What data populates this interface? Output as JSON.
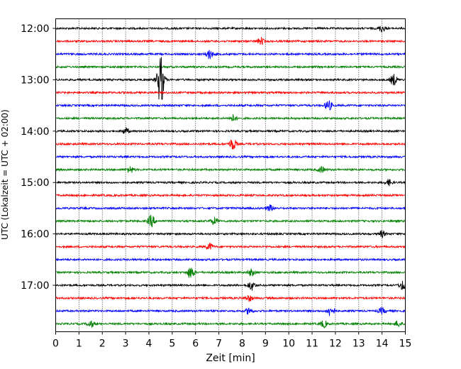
{
  "chart_data": {
    "type": "line",
    "title": "",
    "xlabel": "Zeit  [min]",
    "ylabel": "UTC (Lokalzeit = UTC + 02:00)",
    "xlim": [
      0,
      15
    ],
    "x_ticks": [
      "0",
      "1",
      "2",
      "3",
      "4",
      "5",
      "6",
      "7",
      "8",
      "9",
      "10",
      "11",
      "12",
      "13",
      "14",
      "15"
    ],
    "y_ticks": [
      "12:00",
      "13:00",
      "14:00",
      "15:00",
      "16:00",
      "17:00"
    ],
    "grid": "vertical dotted lines at each minute",
    "trace_interval_minutes": 15,
    "color_cycle": [
      "#000000",
      "#ff0000",
      "#0000ff",
      "#008000"
    ],
    "traces": [
      {
        "start": "12:00",
        "color": "#000000",
        "events": [
          [
            14.0,
            0.8
          ]
        ]
      },
      {
        "start": "12:15",
        "color": "#ff0000",
        "events": [
          [
            8.8,
            0.8
          ]
        ]
      },
      {
        "start": "12:30",
        "color": "#0000ff",
        "events": [
          [
            6.6,
            1.1
          ]
        ]
      },
      {
        "start": "12:45",
        "color": "#008000",
        "events": []
      },
      {
        "start": "13:00",
        "color": "#000000",
        "events": [
          [
            4.5,
            6.0
          ],
          [
            14.5,
            1.3
          ]
        ]
      },
      {
        "start": "13:15",
        "color": "#ff0000",
        "events": []
      },
      {
        "start": "13:30",
        "color": "#0000ff",
        "events": [
          [
            11.7,
            1.2
          ]
        ]
      },
      {
        "start": "13:45",
        "color": "#008000",
        "events": [
          [
            7.6,
            0.8
          ]
        ]
      },
      {
        "start": "14:00",
        "color": "#000000",
        "events": [
          [
            3.0,
            0.7
          ]
        ]
      },
      {
        "start": "14:15",
        "color": "#ff0000",
        "events": [
          [
            7.6,
            1.4
          ]
        ]
      },
      {
        "start": "14:30",
        "color": "#0000ff",
        "events": []
      },
      {
        "start": "14:45",
        "color": "#008000",
        "events": [
          [
            3.2,
            0.8
          ],
          [
            11.4,
            0.7
          ]
        ]
      },
      {
        "start": "15:00",
        "color": "#000000",
        "events": [
          [
            14.3,
            0.7
          ]
        ]
      },
      {
        "start": "15:15",
        "color": "#ff0000",
        "events": []
      },
      {
        "start": "15:30",
        "color": "#0000ff",
        "events": [
          [
            9.2,
            0.7
          ]
        ]
      },
      {
        "start": "15:45",
        "color": "#008000",
        "events": [
          [
            4.1,
            1.4
          ],
          [
            6.8,
            0.8
          ]
        ]
      },
      {
        "start": "16:00",
        "color": "#000000",
        "events": [
          [
            14.0,
            0.7
          ]
        ]
      },
      {
        "start": "16:15",
        "color": "#ff0000",
        "events": [
          [
            6.6,
            0.8
          ]
        ]
      },
      {
        "start": "16:30",
        "color": "#0000ff",
        "events": []
      },
      {
        "start": "16:45",
        "color": "#008000",
        "events": [
          [
            5.8,
            1.4
          ],
          [
            8.4,
            0.8
          ]
        ]
      },
      {
        "start": "17:00",
        "color": "#000000",
        "events": [
          [
            8.4,
            1.1
          ],
          [
            14.9,
            1.1
          ]
        ]
      },
      {
        "start": "17:15",
        "color": "#ff0000",
        "events": [
          [
            8.3,
            0.7
          ]
        ]
      },
      {
        "start": "17:30",
        "color": "#0000ff",
        "events": [
          [
            8.3,
            0.8
          ],
          [
            11.8,
            1.3
          ],
          [
            14.0,
            0.7
          ]
        ]
      },
      {
        "start": "17:45",
        "color": "#008000",
        "events": [
          [
            1.5,
            0.8
          ],
          [
            11.5,
            0.8
          ],
          [
            14.7,
            0.7
          ]
        ]
      }
    ]
  }
}
